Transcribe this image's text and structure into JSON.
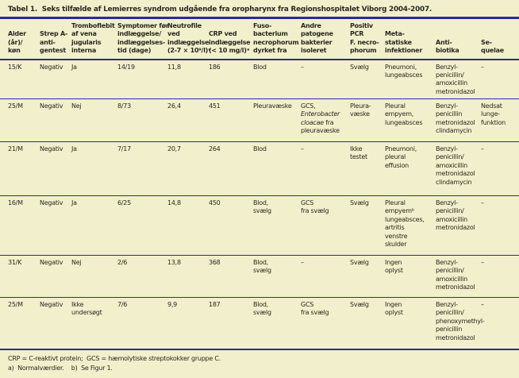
{
  "colors": {
    "background": "#f2efcc",
    "rule": "#2b2b9b",
    "text": "#2a2920"
  },
  "chart_data": {
    "type": "table",
    "title": "Tabel 1.  Seks tilfælde af Lemierres syndrom udgående fra oropharynx fra Regionshospitalet Viborg 2004-2007.",
    "columns": [
      "Alder\n(år)/\nkøn",
      "Strep A-\nanti-\ngentest",
      "Tromboflebit\naf vena\njugularis\ninterna",
      "Symptomer før\nindlæggelse/\nindlæggelses-\ntid (dage)",
      "Neutrofile\nved\nindlæggelse\n(2-7 × 10⁹/l)ᵃ",
      "CRP ved\nindlæggelse\n(< 10 mg/l)ᵃ",
      "Fuso-\nbacterium\nnecrophorum\ndyrket fra",
      "Andre\npatogene\nbakterier\nisoleret",
      "Positiv\nPCR\nF. necro-\nphorum",
      "Meta-\nstatiske\ninfektioner",
      "Anti-\nbiotika",
      "Se-\nquelae"
    ],
    "rows": [
      [
        "15/K",
        "Negativ",
        "Ja",
        "14/19",
        "11,8",
        "186",
        "Blod",
        "–",
        "Svælg",
        "Pneumoni,\nlungeabsces",
        "Benzyl-\npenicillin/\namoxicillin\nmetronidazol",
        "–"
      ],
      [
        "25/M",
        "Negativ",
        "Nej",
        "8/73",
        "26,4",
        "451",
        "Pleuravæske",
        [
          "GCS,\n",
          {
            "i": "Enterobacter\ncloacae"
          },
          " fra\npleuravæske"
        ],
        "Pleura-\nvæske",
        "Pleural\nempyem,\nlungeabsces",
        "Benzyl-\npenicillin\nmetronidazol\nclindamycin",
        "Nedsat\nlunge-\nfunktion"
      ],
      [
        "21/M",
        "Negativ",
        "Ja",
        "7/17",
        "20,7",
        "264",
        "Blod",
        "–",
        "Ikke\ntestet",
        "Pneumoni,\npleural\neffusion",
        "Benzyl-\npenicillin/\namoxicillin\nmetronidazol\nclindamycin",
        "–"
      ],
      [
        "16/M",
        "Negativ",
        "Ja",
        "6/25",
        "14,8",
        "450",
        "Blod,\nsvælg",
        "GCS\nfra svælg",
        "Svælg",
        "Pleural\nempyemᵇ\nlungeabsces,\nartritis\nvenstre\nskulder",
        "Benzyl-\npenicillin/\namoxicillin\nmetronidazol",
        "–"
      ],
      [
        "31/K",
        "Negativ",
        "Nej",
        "2/6",
        "13,8",
        "368",
        "Blod,\nsvælg",
        "–",
        "Svælg",
        "Ingen\noplyst",
        "Benzyl-\npenicillin/\namoxicillin\nmetronidazol",
        "–"
      ],
      [
        "25/M",
        "Negativ",
        "Ikke\nundersøgt",
        "7/6",
        "9,9",
        "187",
        "Blod,\nsvælg",
        "GCS\nfra svælg",
        "Svælg",
        "Ingen\noplyst",
        "Benzyl-\npenicillin/\nphenoxymethyl-\npenicillin\nmetronidazol",
        "–"
      ]
    ],
    "footnotes": [
      "CRP = C-reaktivt protein;  GCS = hæmolytiske streptokokker gruppe C.",
      "a)  Normalværdier.    b)  Se Figur 1."
    ]
  }
}
